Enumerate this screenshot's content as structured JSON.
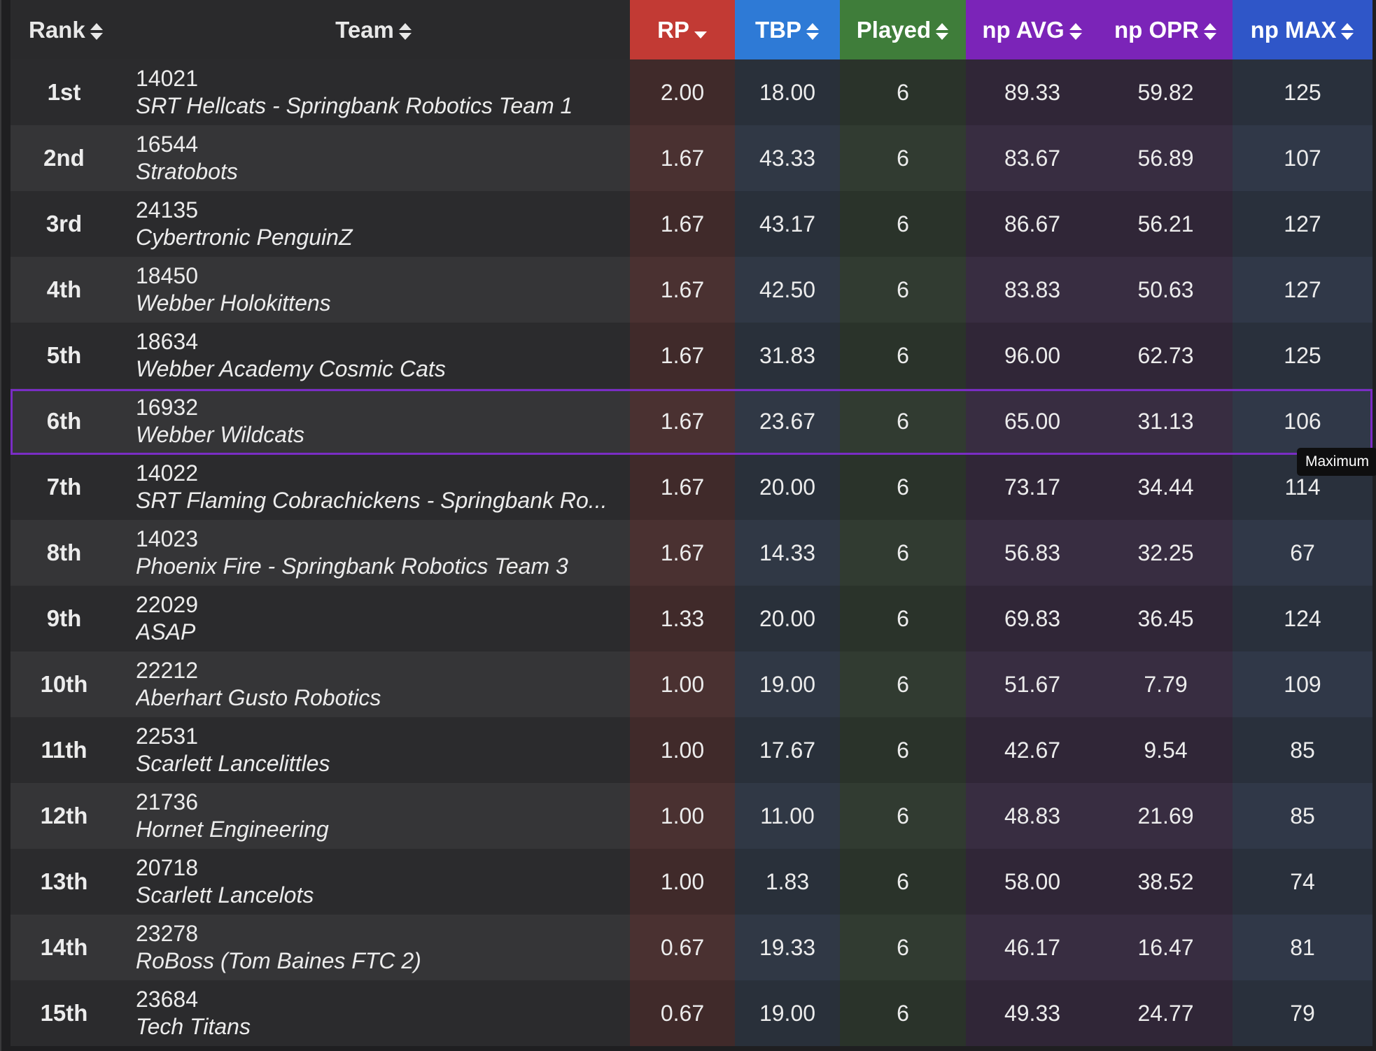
{
  "headers": {
    "rank": "Rank",
    "team": "Team",
    "rp": "RP",
    "tbp": "TBP",
    "played": "Played",
    "np_avg": "np AVG",
    "np_opr": "np OPR",
    "np_max": "np MAX"
  },
  "sort": {
    "column": "RP",
    "direction": "descending"
  },
  "tooltip": "Maximum",
  "highlighted_row": "6th",
  "colors": {
    "rp": "#c23a34",
    "tbp": "#2e7ad6",
    "played": "#3f7d3a",
    "np": "#7b24b8",
    "np_max": "#2f56c8",
    "highlight": "#7a2dc4"
  },
  "rows": [
    {
      "rank": "1st",
      "number": "14021",
      "name": "SRT Hellcats - Springbank Robotics Team 1",
      "rp": "2.00",
      "tbp": "18.00",
      "played": "6",
      "avg": "89.33",
      "opr": "59.82",
      "max": "125"
    },
    {
      "rank": "2nd",
      "number": "16544",
      "name": "Stratobots",
      "rp": "1.67",
      "tbp": "43.33",
      "played": "6",
      "avg": "83.67",
      "opr": "56.89",
      "max": "107"
    },
    {
      "rank": "3rd",
      "number": "24135",
      "name": "Cybertronic PenguinZ",
      "rp": "1.67",
      "tbp": "43.17",
      "played": "6",
      "avg": "86.67",
      "opr": "56.21",
      "max": "127"
    },
    {
      "rank": "4th",
      "number": "18450",
      "name": "Webber Holokittens",
      "rp": "1.67",
      "tbp": "42.50",
      "played": "6",
      "avg": "83.83",
      "opr": "50.63",
      "max": "127"
    },
    {
      "rank": "5th",
      "number": "18634",
      "name": "Webber Academy Cosmic Cats",
      "rp": "1.67",
      "tbp": "31.83",
      "played": "6",
      "avg": "96.00",
      "opr": "62.73",
      "max": "125"
    },
    {
      "rank": "6th",
      "number": "16932",
      "name": "Webber Wildcats",
      "rp": "1.67",
      "tbp": "23.67",
      "played": "6",
      "avg": "65.00",
      "opr": "31.13",
      "max": "106"
    },
    {
      "rank": "7th",
      "number": "14022",
      "name": "SRT Flaming Cobrachickens - Springbank Ro...",
      "rp": "1.67",
      "tbp": "20.00",
      "played": "6",
      "avg": "73.17",
      "opr": "34.44",
      "max": "114"
    },
    {
      "rank": "8th",
      "number": "14023",
      "name": "Phoenix Fire - Springbank Robotics Team 3",
      "rp": "1.67",
      "tbp": "14.33",
      "played": "6",
      "avg": "56.83",
      "opr": "32.25",
      "max": "67"
    },
    {
      "rank": "9th",
      "number": "22029",
      "name": "ASAP",
      "rp": "1.33",
      "tbp": "20.00",
      "played": "6",
      "avg": "69.83",
      "opr": "36.45",
      "max": "124"
    },
    {
      "rank": "10th",
      "number": "22212",
      "name": "Aberhart Gusto Robotics",
      "rp": "1.00",
      "tbp": "19.00",
      "played": "6",
      "avg": "51.67",
      "opr": "7.79",
      "max": "109"
    },
    {
      "rank": "11th",
      "number": "22531",
      "name": "Scarlett Lancelittles",
      "rp": "1.00",
      "tbp": "17.67",
      "played": "6",
      "avg": "42.67",
      "opr": "9.54",
      "max": "85"
    },
    {
      "rank": "12th",
      "number": "21736",
      "name": "Hornet Engineering",
      "rp": "1.00",
      "tbp": "11.00",
      "played": "6",
      "avg": "48.83",
      "opr": "21.69",
      "max": "85"
    },
    {
      "rank": "13th",
      "number": "20718",
      "name": "Scarlett Lancelots",
      "rp": "1.00",
      "tbp": "1.83",
      "played": "6",
      "avg": "58.00",
      "opr": "38.52",
      "max": "74"
    },
    {
      "rank": "14th",
      "number": "23278",
      "name": "RoBoss (Tom Baines FTC 2)",
      "rp": "0.67",
      "tbp": "19.33",
      "played": "6",
      "avg": "46.17",
      "opr": "16.47",
      "max": "81"
    },
    {
      "rank": "15th",
      "number": "23684",
      "name": "Tech Titans",
      "rp": "0.67",
      "tbp": "19.00",
      "played": "6",
      "avg": "49.33",
      "opr": "24.77",
      "max": "79"
    }
  ]
}
